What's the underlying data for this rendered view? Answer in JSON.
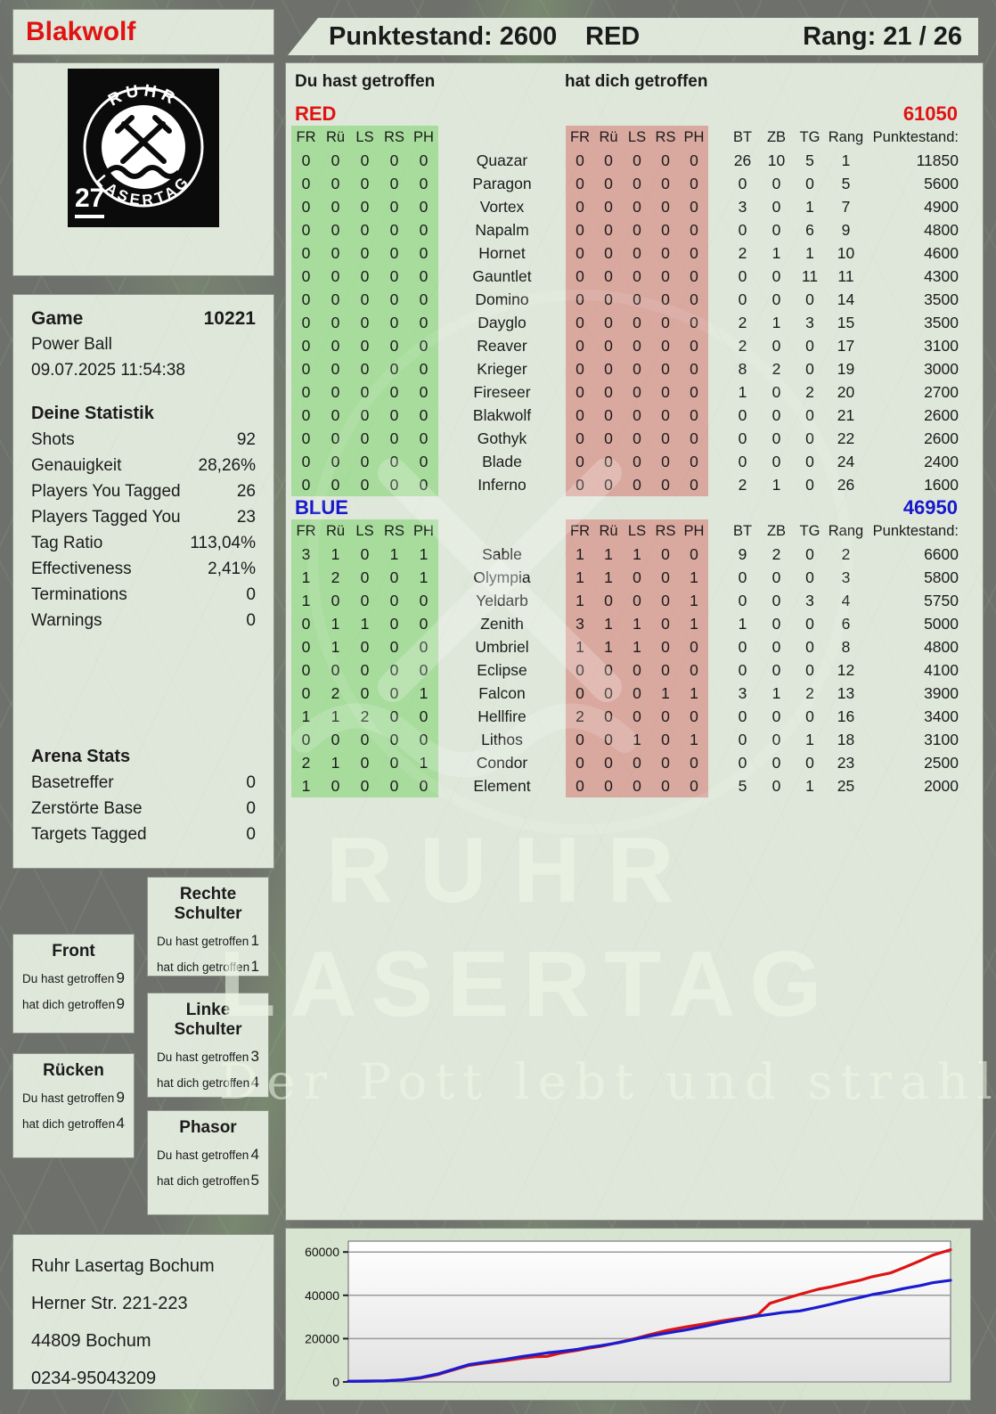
{
  "colors": {
    "accent_red": "#e01313",
    "accent_blue": "#1717cc",
    "band_green": "#a6d99c",
    "band_pink": "#d9a89f",
    "chart_red": "#dd1414",
    "chart_blue": "#1b1bd0"
  },
  "header": {
    "player_name": "Blakwolf",
    "score": "Punktestand: 2600",
    "team": "RED",
    "rank": "Rang: 21 / 26"
  },
  "logo": {
    "arc_top": "RUHR",
    "arc_bottom": "LASERTAG",
    "badge": "27"
  },
  "game_info": {
    "label": "Game",
    "number": "10221",
    "mode": "Power Ball",
    "datetime": "09.07.2025 11:54:38"
  },
  "your_stats": {
    "title": "Deine Statistik",
    "rows": [
      {
        "label": "Shots",
        "value": "92"
      },
      {
        "label": "Genauigkeit",
        "value": "28,26%"
      },
      {
        "label": "Players You Tagged",
        "value": "26"
      },
      {
        "label": "Players Tagged You",
        "value": "23"
      },
      {
        "label": "Tag Ratio",
        "value": "113,04%"
      },
      {
        "label": "Effectiveness",
        "value": "2,41%"
      },
      {
        "label": "Terminations",
        "value": "0"
      },
      {
        "label": "Warnings",
        "value": "0"
      }
    ]
  },
  "arena_stats": {
    "title": "Arena Stats",
    "rows": [
      {
        "label": "Basetreffer",
        "value": "0"
      },
      {
        "label": "Zerstörte Base",
        "value": "0"
      },
      {
        "label": "Targets Tagged",
        "value": "0"
      }
    ]
  },
  "hit_zones": {
    "you_label": "Du hast getroffen",
    "them_label": "hat dich getroffen",
    "boxes": [
      {
        "title": "Front",
        "you": "9",
        "them": "9"
      },
      {
        "title": "Rücken",
        "you": "9",
        "them": "4"
      },
      {
        "title": "Rechte Schulter",
        "you": "1",
        "them": "1"
      },
      {
        "title": "Linke Schulter",
        "you": "3",
        "them": "4"
      },
      {
        "title": "Phasor",
        "you": "4",
        "them": "5"
      }
    ]
  },
  "tables": {
    "you_hit_label": "Du hast getroffen",
    "hit_you_label": "hat dich getroffen",
    "hit_cols": [
      "FR",
      "Rü",
      "LS",
      "RS",
      "PH"
    ],
    "stat_cols": [
      "BT",
      "ZB",
      "TG",
      "Rang",
      "Punktestand:"
    ],
    "red": {
      "team_label": "RED",
      "total": "61050",
      "rows": [
        {
          "y": [
            0,
            0,
            0,
            0,
            0
          ],
          "name": "Quazar",
          "t": [
            0,
            0,
            0,
            0,
            0
          ],
          "bt": 26,
          "zb": 10,
          "tg": 5,
          "rang": 1,
          "pts": 11850
        },
        {
          "y": [
            0,
            0,
            0,
            0,
            0
          ],
          "name": "Paragon",
          "t": [
            0,
            0,
            0,
            0,
            0
          ],
          "bt": 0,
          "zb": 0,
          "tg": 0,
          "rang": 5,
          "pts": 5600
        },
        {
          "y": [
            0,
            0,
            0,
            0,
            0
          ],
          "name": "Vortex",
          "t": [
            0,
            0,
            0,
            0,
            0
          ],
          "bt": 3,
          "zb": 0,
          "tg": 1,
          "rang": 7,
          "pts": 4900
        },
        {
          "y": [
            0,
            0,
            0,
            0,
            0
          ],
          "name": "Napalm",
          "t": [
            0,
            0,
            0,
            0,
            0
          ],
          "bt": 0,
          "zb": 0,
          "tg": 6,
          "rang": 9,
          "pts": 4800
        },
        {
          "y": [
            0,
            0,
            0,
            0,
            0
          ],
          "name": "Hornet",
          "t": [
            0,
            0,
            0,
            0,
            0
          ],
          "bt": 2,
          "zb": 1,
          "tg": 1,
          "rang": 10,
          "pts": 4600
        },
        {
          "y": [
            0,
            0,
            0,
            0,
            0
          ],
          "name": "Gauntlet",
          "t": [
            0,
            0,
            0,
            0,
            0
          ],
          "bt": 0,
          "zb": 0,
          "tg": 11,
          "rang": 11,
          "pts": 4300
        },
        {
          "y": [
            0,
            0,
            0,
            0,
            0
          ],
          "name": "Domino",
          "t": [
            0,
            0,
            0,
            0,
            0
          ],
          "bt": 0,
          "zb": 0,
          "tg": 0,
          "rang": 14,
          "pts": 3500
        },
        {
          "y": [
            0,
            0,
            0,
            0,
            0
          ],
          "name": "Dayglo",
          "t": [
            0,
            0,
            0,
            0,
            0
          ],
          "bt": 2,
          "zb": 1,
          "tg": 3,
          "rang": 15,
          "pts": 3500
        },
        {
          "y": [
            0,
            0,
            0,
            0,
            0
          ],
          "name": "Reaver",
          "t": [
            0,
            0,
            0,
            0,
            0
          ],
          "bt": 2,
          "zb": 0,
          "tg": 0,
          "rang": 17,
          "pts": 3100
        },
        {
          "y": [
            0,
            0,
            0,
            0,
            0
          ],
          "name": "Krieger",
          "t": [
            0,
            0,
            0,
            0,
            0
          ],
          "bt": 8,
          "zb": 2,
          "tg": 0,
          "rang": 19,
          "pts": 3000
        },
        {
          "y": [
            0,
            0,
            0,
            0,
            0
          ],
          "name": "Fireseer",
          "t": [
            0,
            0,
            0,
            0,
            0
          ],
          "bt": 1,
          "zb": 0,
          "tg": 2,
          "rang": 20,
          "pts": 2700
        },
        {
          "y": [
            0,
            0,
            0,
            0,
            0
          ],
          "name": "Blakwolf",
          "t": [
            0,
            0,
            0,
            0,
            0
          ],
          "bt": 0,
          "zb": 0,
          "tg": 0,
          "rang": 21,
          "pts": 2600
        },
        {
          "y": [
            0,
            0,
            0,
            0,
            0
          ],
          "name": "Gothyk",
          "t": [
            0,
            0,
            0,
            0,
            0
          ],
          "bt": 0,
          "zb": 0,
          "tg": 0,
          "rang": 22,
          "pts": 2600
        },
        {
          "y": [
            0,
            0,
            0,
            0,
            0
          ],
          "name": "Blade",
          "t": [
            0,
            0,
            0,
            0,
            0
          ],
          "bt": 0,
          "zb": 0,
          "tg": 0,
          "rang": 24,
          "pts": 2400
        },
        {
          "y": [
            0,
            0,
            0,
            0,
            0
          ],
          "name": "Inferno",
          "t": [
            0,
            0,
            0,
            0,
            0
          ],
          "bt": 2,
          "zb": 1,
          "tg": 0,
          "rang": 26,
          "pts": 1600
        }
      ]
    },
    "blue": {
      "team_label": "BLUE",
      "total": "46950",
      "rows": [
        {
          "y": [
            3,
            1,
            0,
            1,
            1
          ],
          "name": "Sable",
          "t": [
            1,
            1,
            1,
            0,
            0
          ],
          "bt": 9,
          "zb": 2,
          "tg": 0,
          "rang": 2,
          "pts": 6600
        },
        {
          "y": [
            1,
            2,
            0,
            0,
            1
          ],
          "name": "Olympia",
          "t": [
            1,
            1,
            0,
            0,
            1
          ],
          "bt": 0,
          "zb": 0,
          "tg": 0,
          "rang": 3,
          "pts": 5800
        },
        {
          "y": [
            1,
            0,
            0,
            0,
            0
          ],
          "name": "Yeldarb",
          "t": [
            1,
            0,
            0,
            0,
            1
          ],
          "bt": 0,
          "zb": 0,
          "tg": 3,
          "rang": 4,
          "pts": 5750
        },
        {
          "y": [
            0,
            1,
            1,
            0,
            0
          ],
          "name": "Zenith",
          "t": [
            3,
            1,
            1,
            0,
            1
          ],
          "bt": 1,
          "zb": 0,
          "tg": 0,
          "rang": 6,
          "pts": 5000
        },
        {
          "y": [
            0,
            1,
            0,
            0,
            0
          ],
          "name": "Umbriel",
          "t": [
            1,
            1,
            1,
            0,
            0
          ],
          "bt": 0,
          "zb": 0,
          "tg": 0,
          "rang": 8,
          "pts": 4800
        },
        {
          "y": [
            0,
            0,
            0,
            0,
            0
          ],
          "name": "Eclipse",
          "t": [
            0,
            0,
            0,
            0,
            0
          ],
          "bt": 0,
          "zb": 0,
          "tg": 0,
          "rang": 12,
          "pts": 4100
        },
        {
          "y": [
            0,
            2,
            0,
            0,
            1
          ],
          "name": "Falcon",
          "t": [
            0,
            0,
            0,
            1,
            1
          ],
          "bt": 3,
          "zb": 1,
          "tg": 2,
          "rang": 13,
          "pts": 3900
        },
        {
          "y": [
            1,
            1,
            2,
            0,
            0
          ],
          "name": "Hellfire",
          "t": [
            2,
            0,
            0,
            0,
            0
          ],
          "bt": 0,
          "zb": 0,
          "tg": 0,
          "rang": 16,
          "pts": 3400
        },
        {
          "y": [
            0,
            0,
            0,
            0,
            0
          ],
          "name": "Lithos",
          "t": [
            0,
            0,
            1,
            0,
            1
          ],
          "bt": 0,
          "zb": 0,
          "tg": 1,
          "rang": 18,
          "pts": 3100
        },
        {
          "y": [
            2,
            1,
            0,
            0,
            1
          ],
          "name": "Condor",
          "t": [
            0,
            0,
            0,
            0,
            0
          ],
          "bt": 0,
          "zb": 0,
          "tg": 0,
          "rang": 23,
          "pts": 2500
        },
        {
          "y": [
            1,
            0,
            0,
            0,
            0
          ],
          "name": "Element",
          "t": [
            0,
            0,
            0,
            0,
            0
          ],
          "bt": 5,
          "zb": 0,
          "tg": 1,
          "rang": 25,
          "pts": 2000
        }
      ]
    }
  },
  "watermark": {
    "line1": "RUHR",
    "line2": "LASERTAG",
    "slogan": "Der Pott lebt und strahlt"
  },
  "address": {
    "line1": "Ruhr Lasertag Bochum",
    "line2": "Herner Str. 221-223",
    "line3": "44809 Bochum",
    "line4": "0234-95043209"
  },
  "chart_data": {
    "type": "line",
    "title": "",
    "xlabel": "",
    "ylabel": "",
    "yticks": [
      0,
      20000,
      40000,
      60000
    ],
    "ylim": [
      0,
      65000
    ],
    "xlim_pct": [
      0,
      100
    ],
    "grid": true,
    "legend": "none",
    "x": [
      0,
      3,
      6,
      9,
      12,
      15,
      18,
      20,
      23,
      26,
      29,
      31,
      33,
      35,
      38,
      40,
      42,
      45,
      48,
      50,
      53,
      56,
      59,
      62,
      64,
      66,
      68,
      70,
      72,
      75,
      78,
      80,
      83,
      85,
      87,
      90,
      92,
      95,
      97,
      100
    ],
    "series": [
      {
        "name": "RED",
        "color": "#dd1414",
        "values": [
          300,
          400,
          500,
          900,
          1800,
          3500,
          6000,
          7600,
          8800,
          9800,
          11000,
          11600,
          11800,
          13200,
          14600,
          15600,
          16500,
          18300,
          20300,
          21800,
          23800,
          25400,
          26800,
          28200,
          29000,
          29800,
          31000,
          36300,
          38000,
          40500,
          42800,
          43800,
          45800,
          47000,
          48600,
          50300,
          52500,
          56000,
          58500,
          61050
        ]
      },
      {
        "name": "BLUE",
        "color": "#1b1bd0",
        "values": [
          300,
          350,
          500,
          1000,
          2000,
          3800,
          6300,
          8000,
          9200,
          10400,
          11800,
          12600,
          13400,
          14000,
          15000,
          16000,
          16800,
          18200,
          20000,
          21200,
          22600,
          24000,
          25600,
          27400,
          28400,
          29400,
          30400,
          31200,
          32000,
          32800,
          34500,
          35800,
          37800,
          39000,
          40300,
          41800,
          43000,
          44500,
          45800,
          46950
        ]
      }
    ]
  }
}
